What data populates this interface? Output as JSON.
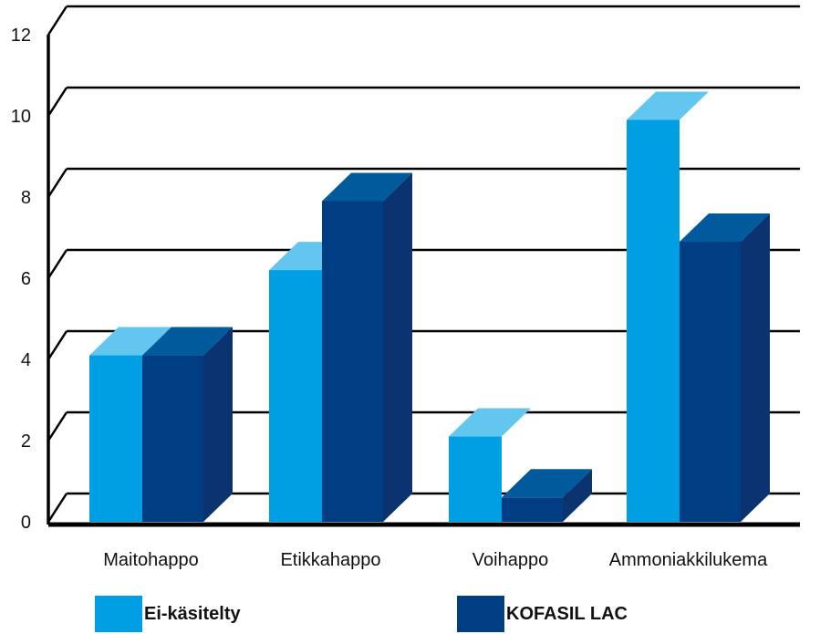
{
  "chart_data": {
    "type": "bar",
    "title": "",
    "xlabel": "",
    "ylabel": "",
    "ylim": [
      0,
      12
    ],
    "yticks": [
      0,
      2,
      4,
      6,
      8,
      10,
      12
    ],
    "grid": true,
    "legend_position": "bottom",
    "categories": [
      "Maitohappo",
      "Etikkahappo",
      "Voihappo",
      "Ammoniakkilukema"
    ],
    "series": [
      {
        "name": "Ei-käsitelty",
        "values": [
          4.1,
          6.2,
          2.1,
          9.9
        ],
        "color": "#009fe3",
        "top_color": "#62c6ee",
        "side_color": "#0081c4"
      },
      {
        "name": "KOFASIL LAC",
        "values": [
          4.1,
          7.9,
          0.6,
          6.9
        ],
        "color": "#003d82",
        "top_color": "#005a9c",
        "side_color": "#0a3370"
      }
    ]
  }
}
